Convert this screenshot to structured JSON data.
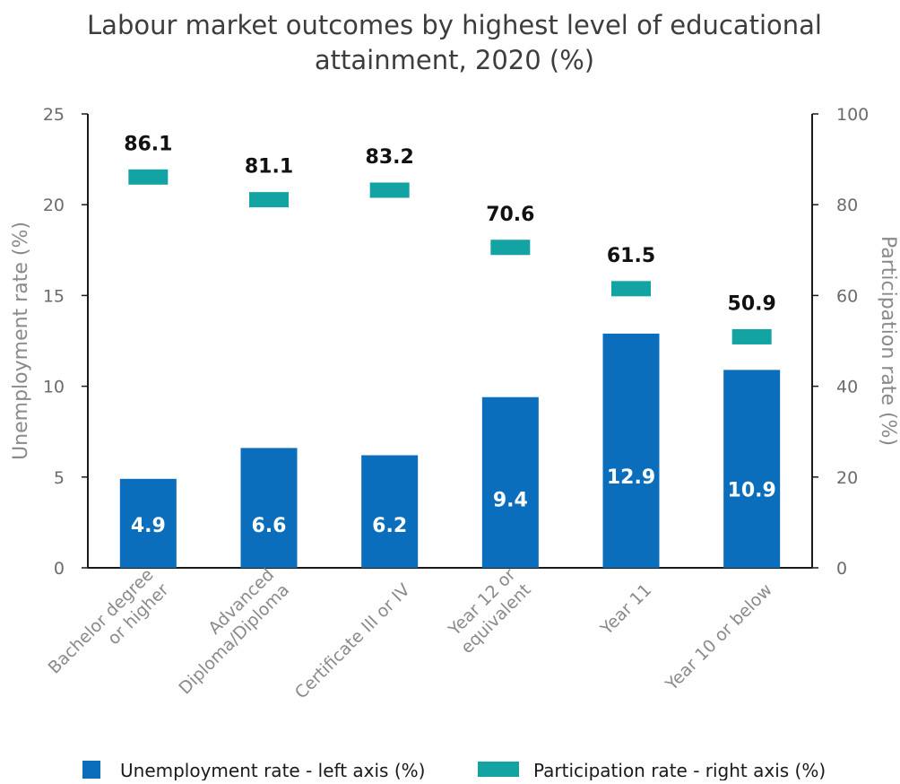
{
  "chart_data": {
    "type": "bar",
    "title": [
      "Labour market outcomes by highest level of educational",
      "attainment, 2020 (%)"
    ],
    "categories": [
      [
        "Bachelor degree",
        "or higher"
      ],
      [
        "Advanced",
        "Diploma/Diploma"
      ],
      [
        "Certificate III or IV"
      ],
      [
        "Year 12 or",
        "equivalent"
      ],
      [
        "Year 11"
      ],
      [
        "Year 10 or below"
      ]
    ],
    "ylabel_left": "Unemployment rate (%)",
    "ylabel_right": "Participation rate (%)",
    "ylim_left": [
      0,
      25
    ],
    "ylim_right": [
      0,
      100
    ],
    "yticks_left": [
      0,
      5,
      10,
      15,
      20,
      25
    ],
    "yticks_right": [
      0,
      20,
      40,
      60,
      80,
      100
    ],
    "grid": false,
    "legend_position": "bottom",
    "series": [
      {
        "name": "Unemployment rate - left axis (%)",
        "axis": "left",
        "mark": "bar",
        "color": "#0a6ebd",
        "values": [
          4.9,
          6.6,
          6.2,
          9.4,
          12.9,
          10.9
        ],
        "labels": [
          "4.9",
          "6.6",
          "6.2",
          "9.4",
          "12.9",
          "10.9"
        ]
      },
      {
        "name": "Participation rate - right axis (%)",
        "axis": "right",
        "mark": "dash",
        "color": "#14a3a3",
        "values": [
          86.1,
          81.1,
          83.2,
          70.6,
          61.5,
          50.9
        ],
        "labels": [
          "86.1",
          "81.1",
          "83.2",
          "70.6",
          "61.5",
          "50.9"
        ]
      }
    ]
  }
}
